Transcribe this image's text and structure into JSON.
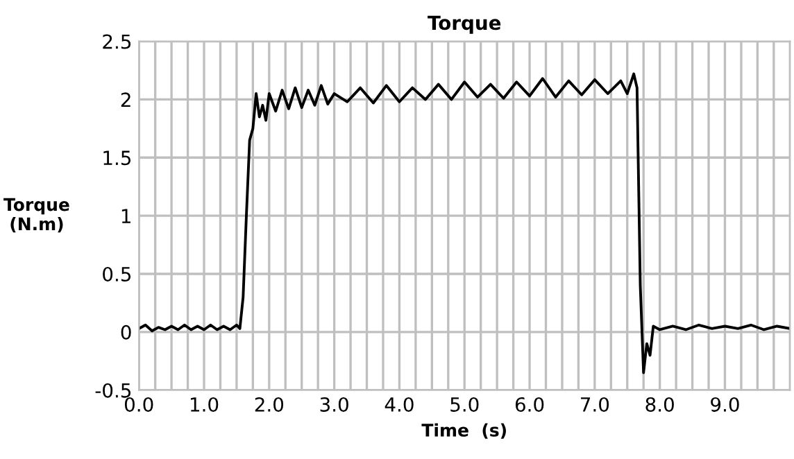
{
  "chart_data": {
    "type": "line",
    "title": "Torque",
    "xlabel": "Time  (s)",
    "ylabel": "Torque\n(N.m)",
    "xlim": [
      0,
      10
    ],
    "ylim": [
      -0.5,
      2.5
    ],
    "xticks": [
      {
        "value": 0,
        "label": "0.0"
      },
      {
        "value": 0.25,
        "label": null
      },
      {
        "value": 0.5,
        "label": null
      },
      {
        "value": 0.75,
        "label": null
      },
      {
        "value": 1,
        "label": "1.0"
      },
      {
        "value": 1.25,
        "label": null
      },
      {
        "value": 1.5,
        "label": null
      },
      {
        "value": 1.75,
        "label": null
      },
      {
        "value": 2,
        "label": "2.0"
      },
      {
        "value": 2.25,
        "label": null
      },
      {
        "value": 2.5,
        "label": null
      },
      {
        "value": 2.75,
        "label": null
      },
      {
        "value": 3,
        "label": "3.0"
      },
      {
        "value": 3.25,
        "label": null
      },
      {
        "value": 3.5,
        "label": null
      },
      {
        "value": 3.75,
        "label": null
      },
      {
        "value": 4,
        "label": "4.0"
      },
      {
        "value": 4.25,
        "label": null
      },
      {
        "value": 4.5,
        "label": null
      },
      {
        "value": 4.75,
        "label": null
      },
      {
        "value": 5,
        "label": "5.0"
      },
      {
        "value": 5.25,
        "label": null
      },
      {
        "value": 5.5,
        "label": null
      },
      {
        "value": 5.75,
        "label": null
      },
      {
        "value": 6,
        "label": "6.0"
      },
      {
        "value": 6.25,
        "label": null
      },
      {
        "value": 6.5,
        "label": null
      },
      {
        "value": 6.75,
        "label": null
      },
      {
        "value": 7,
        "label": "7.0"
      },
      {
        "value": 7.25,
        "label": null
      },
      {
        "value": 7.5,
        "label": null
      },
      {
        "value": 7.75,
        "label": null
      },
      {
        "value": 8,
        "label": "8.0"
      },
      {
        "value": 8.25,
        "label": null
      },
      {
        "value": 8.5,
        "label": null
      },
      {
        "value": 8.75,
        "label": null
      },
      {
        "value": 9,
        "label": "9.0"
      },
      {
        "value": 9.25,
        "label": null
      },
      {
        "value": 9.5,
        "label": null
      },
      {
        "value": 9.75,
        "label": null
      },
      {
        "value": 10,
        "label": null
      }
    ],
    "yticks": [
      -0.5,
      0,
      {
        "value": 0.5,
        "label": "0.5"
      },
      1,
      {
        "value": 1.5,
        "label": "1.5"
      },
      2,
      {
        "value": 2.5,
        "label": "2.5"
      }
    ],
    "grid": true,
    "legend": false,
    "marker": "none",
    "line_style": "solid",
    "series": [
      {
        "color": "#000000",
        "x": [
          0,
          0.1,
          0.2,
          0.3,
          0.4,
          0.5,
          0.6,
          0.7,
          0.8,
          0.9,
          1.0,
          1.1,
          1.2,
          1.3,
          1.4,
          1.5,
          1.55,
          1.6,
          1.65,
          1.7,
          1.75,
          1.8,
          1.85,
          1.9,
          1.95,
          2.0,
          2.1,
          2.2,
          2.3,
          2.4,
          2.5,
          2.6,
          2.7,
          2.8,
          2.9,
          3.0,
          3.2,
          3.4,
          3.6,
          3.8,
          4.0,
          4.2,
          4.4,
          4.6,
          4.8,
          5.0,
          5.2,
          5.4,
          5.6,
          5.8,
          6.0,
          6.2,
          6.4,
          6.6,
          6.8,
          7.0,
          7.2,
          7.4,
          7.5,
          7.6,
          7.65,
          7.7,
          7.75,
          7.8,
          7.85,
          7.9,
          8.0,
          8.2,
          8.4,
          8.6,
          8.8,
          9.0,
          9.2,
          9.4,
          9.6,
          9.8,
          10.0
        ],
        "values": [
          0.03,
          0.06,
          0.01,
          0.04,
          0.02,
          0.05,
          0.02,
          0.06,
          0.02,
          0.05,
          0.02,
          0.06,
          0.02,
          0.05,
          0.02,
          0.06,
          0.03,
          0.3,
          1.0,
          1.65,
          1.75,
          2.05,
          1.85,
          1.95,
          1.82,
          2.05,
          1.9,
          2.08,
          1.92,
          2.1,
          1.93,
          2.08,
          1.95,
          2.12,
          1.96,
          2.05,
          1.98,
          2.1,
          1.97,
          2.12,
          1.98,
          2.1,
          2.0,
          2.13,
          2.0,
          2.15,
          2.02,
          2.13,
          2.01,
          2.15,
          2.03,
          2.18,
          2.02,
          2.16,
          2.04,
          2.17,
          2.05,
          2.16,
          2.05,
          2.22,
          2.1,
          0.4,
          -0.35,
          -0.1,
          -0.2,
          0.05,
          0.02,
          0.05,
          0.02,
          0.06,
          0.03,
          0.05,
          0.03,
          0.06,
          0.02,
          0.05,
          0.03
        ]
      }
    ]
  }
}
